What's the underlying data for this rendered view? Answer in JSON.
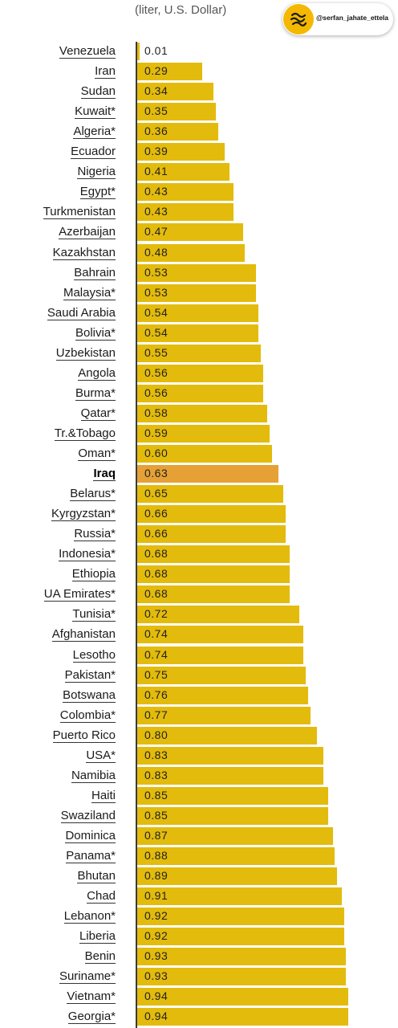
{
  "header": {
    "subtitle": "(liter, U.S. Dollar)"
  },
  "watermark": {
    "handle": "@serfan_jahate_ettela",
    "icon": "logo-icon",
    "color": "#f5b800"
  },
  "colors": {
    "bar": "#e3bb0c",
    "highlight": "#e6a136"
  },
  "chart_data": {
    "type": "bar",
    "orientation": "horizontal",
    "subtitle": "(liter, U.S. Dollar)",
    "highlight": "Iraq",
    "xlim": [
      0,
      1.0
    ],
    "categories": [
      "Venezuela",
      "Iran",
      "Sudan",
      "Kuwait*",
      "Algeria*",
      "Ecuador",
      "Nigeria",
      "Egypt*",
      "Turkmenistan",
      "Azerbaijan",
      "Kazakhstan",
      "Bahrain",
      "Malaysia*",
      "Saudi Arabia",
      "Bolivia*",
      "Uzbekistan",
      "Angola",
      "Burma*",
      "Qatar*",
      "Tr.&Tobago",
      "Oman*",
      "Iraq",
      "Belarus*",
      "Kyrgyzstan*",
      "Russia*",
      "Indonesia*",
      "Ethiopia",
      "UA Emirates*",
      "Tunisia*",
      "Afghanistan",
      "Lesotho",
      "Pakistan*",
      "Botswana",
      "Colombia*",
      "Puerto Rico",
      "USA*",
      "Namibia",
      "Haiti",
      "Swaziland",
      "Dominica",
      "Panama*",
      "Bhutan",
      "Chad",
      "Lebanon*",
      "Liberia",
      "Benin",
      "Suriname*",
      "Vietnam*",
      "Georgia*"
    ],
    "values": [
      0.01,
      0.29,
      0.34,
      0.35,
      0.36,
      0.39,
      0.41,
      0.43,
      0.43,
      0.47,
      0.48,
      0.53,
      0.53,
      0.54,
      0.54,
      0.55,
      0.56,
      0.56,
      0.58,
      0.59,
      0.6,
      0.63,
      0.65,
      0.66,
      0.66,
      0.68,
      0.68,
      0.68,
      0.72,
      0.74,
      0.74,
      0.75,
      0.76,
      0.77,
      0.8,
      0.83,
      0.83,
      0.85,
      0.85,
      0.87,
      0.88,
      0.89,
      0.91,
      0.92,
      0.92,
      0.93,
      0.93,
      0.94,
      0.94
    ],
    "value_labels": [
      "0.01",
      "0.29",
      "0.34",
      "0.35",
      "0.36",
      "0.39",
      "0.41",
      "0.43",
      "0.43",
      "0.47",
      "0.48",
      "0.53",
      "0.53",
      "0.54",
      "0.54",
      "0.55",
      "0.56",
      "0.56",
      "0.58",
      "0.59",
      "0.60",
      "0.63",
      "0.65",
      "0.66",
      "0.66",
      "0.68",
      "0.68",
      "0.68",
      "0.72",
      "0.74",
      "0.74",
      "0.75",
      "0.76",
      "0.77",
      "0.80",
      "0.83",
      "0.83",
      "0.85",
      "0.85",
      "0.87",
      "0.88",
      "0.89",
      "0.91",
      "0.92",
      "0.92",
      "0.93",
      "0.93",
      "0.94",
      "0.94"
    ]
  }
}
